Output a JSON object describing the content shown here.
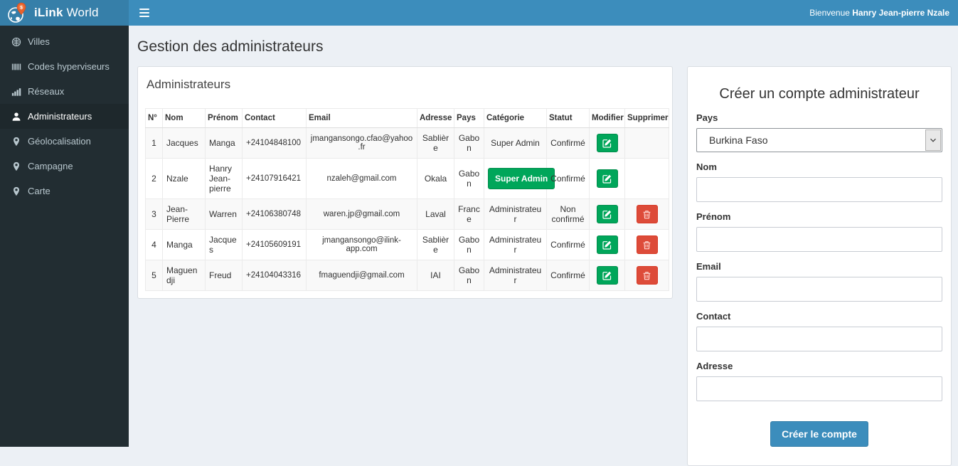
{
  "header": {
    "brand_bold": "iLink",
    "brand_rest": " World",
    "welcome_prefix": "Bienvenue ",
    "welcome_name": "Hanry Jean-pierre Nzale"
  },
  "sidebar": {
    "items": [
      {
        "label": "Villes",
        "icon": "globe",
        "active": false
      },
      {
        "label": "Codes hyperviseurs",
        "icon": "barcode",
        "active": false
      },
      {
        "label": "Réseaux",
        "icon": "bar-chart",
        "active": false
      },
      {
        "label": "Administrateurs",
        "icon": "user",
        "active": true
      },
      {
        "label": "Géolocalisation",
        "icon": "map-marker",
        "active": false
      },
      {
        "label": "Campagne",
        "icon": "map-marker",
        "active": false
      },
      {
        "label": "Carte",
        "icon": "map-marker",
        "active": false
      }
    ]
  },
  "main": {
    "page_title": "Gestion des administrateurs",
    "table_panel": {
      "title": "Administrateurs",
      "columns": [
        "N°",
        "Nom",
        "Prénom",
        "Contact",
        "Email",
        "Adresse",
        "Pays",
        "Catégorie",
        "Statut",
        "Modifier",
        "Supprimer"
      ],
      "rows": [
        {
          "num": "1",
          "nom": "Jacques",
          "prenom": "Manga",
          "contact": "+24104848100",
          "email": "jmangansongo.cfao@yahoo.fr",
          "adresse": "Sablière",
          "pays": "Gabon",
          "categorie": "Super Admin",
          "categorie_as_button": false,
          "statut": "Confirmé",
          "deletable": false
        },
        {
          "num": "2",
          "nom": "Nzale",
          "prenom": "Hanry Jean-pierre",
          "contact": "+24107916421",
          "email": "nzaleh@gmail.com",
          "adresse": "Okala",
          "pays": "Gabon",
          "categorie": "Super Admin",
          "categorie_as_button": true,
          "statut": "Confirmé",
          "deletable": false
        },
        {
          "num": "3",
          "nom": "Jean-Pierre",
          "prenom": "Warren",
          "contact": "+24106380748",
          "email": "waren.jp@gmail.com",
          "adresse": "Laval",
          "pays": "France",
          "categorie": "Administrateur",
          "categorie_as_button": false,
          "statut": "Non confirmé",
          "deletable": true
        },
        {
          "num": "4",
          "nom": "Manga",
          "prenom": "Jacques",
          "contact": "+24105609191",
          "email": "jmangansongo@ilink-app.com",
          "adresse": "Sablière",
          "pays": "Gabon",
          "categorie": "Administrateur",
          "categorie_as_button": false,
          "statut": "Confirmé",
          "deletable": true
        },
        {
          "num": "5",
          "nom": "Maguendji",
          "prenom": "Freud",
          "contact": "+24104043316",
          "email": "fmaguendji@gmail.com",
          "adresse": "IAI",
          "pays": "Gabon",
          "categorie": "Administrateur",
          "categorie_as_button": false,
          "statut": "Confirmé",
          "deletable": true
        }
      ]
    },
    "form_panel": {
      "title": "Créer un compte administrateur",
      "fields": [
        {
          "name": "pays",
          "label": "Pays",
          "type": "select",
          "value": "Burkina Faso"
        },
        {
          "name": "nom",
          "label": "Nom",
          "type": "input",
          "value": "",
          "placeholder": ""
        },
        {
          "name": "prenom",
          "label": "Prénom",
          "type": "input",
          "value": "",
          "placeholder": ""
        },
        {
          "name": "email",
          "label": "Email",
          "type": "input",
          "value": "",
          "placeholder": ""
        },
        {
          "name": "contact",
          "label": "Contact",
          "type": "input",
          "value": "",
          "placeholder": ""
        },
        {
          "name": "adresse",
          "label": "Adresse",
          "type": "input",
          "value": "",
          "placeholder": ""
        }
      ],
      "submit_label": "Créer le compte"
    }
  },
  "colors": {
    "navbar": "#3c8dbc",
    "logo_bg": "#367fa9",
    "sidebar": "#222d32",
    "sidebar_active": "#1e282c",
    "success": "#00a65a",
    "danger": "#dd4b39",
    "primary": "#3c8dbc",
    "content_bg": "#ecf0f5",
    "pin_orange": "#e8622d"
  }
}
